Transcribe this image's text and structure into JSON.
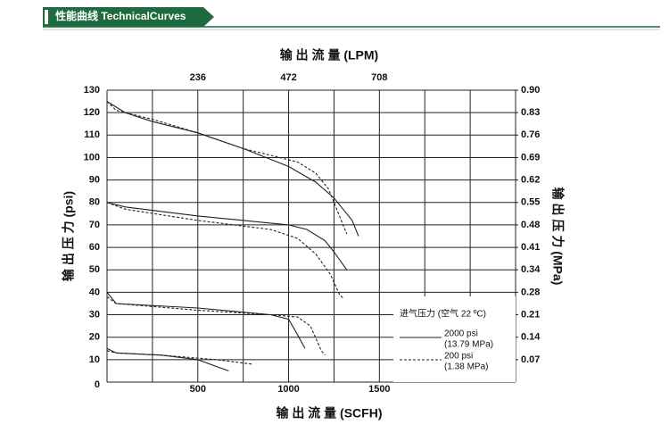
{
  "header": {
    "title": "性能曲线 TechnicalCurves"
  },
  "chart_data": {
    "type": "line",
    "x_title": "输 出 流 量 (SCFH)",
    "x2_title": "输 出 流 量 (LPM)",
    "y_title": "输 出 压 力 (psi)",
    "y2_title": "输 出 压 力 (MPa)",
    "xlim": [
      0,
      2250
    ],
    "xticks": [
      500,
      1000,
      1500
    ],
    "xgrid": [
      250,
      500,
      750,
      1000,
      1250,
      1500,
      1750,
      2000,
      2250
    ],
    "x2lim": [
      0,
      1062
    ],
    "x2ticks": [
      236,
      472,
      708
    ],
    "ylim": [
      0,
      130
    ],
    "yticks": [
      0,
      10,
      20,
      30,
      40,
      50,
      60,
      70,
      80,
      90,
      100,
      110,
      120,
      130
    ],
    "y2lim": [
      0,
      0.8963
    ],
    "y2ticks": [
      {
        "value": 0.0689,
        "label": "0.07"
      },
      {
        "value": 0.1379,
        "label": "0.14"
      },
      {
        "value": 0.2068,
        "label": "0.21"
      },
      {
        "value": 0.2758,
        "label": "0.28"
      },
      {
        "value": 0.3447,
        "label": "0.34"
      },
      {
        "value": 0.4137,
        "label": "0.41"
      },
      {
        "value": 0.4826,
        "label": "0.48"
      },
      {
        "value": 0.5516,
        "label": "0.55"
      },
      {
        "value": 0.6205,
        "label": "0.62"
      },
      {
        "value": 0.6895,
        "label": "0.69"
      },
      {
        "value": 0.7584,
        "label": "0.76"
      },
      {
        "value": 0.8274,
        "label": "0.83"
      },
      {
        "value": 0.8963,
        "label": "0.90"
      }
    ],
    "grid": true,
    "legend_title": "进气压力 (空气 22 ºC)",
    "series": [
      {
        "name": "2000 psi",
        "detail": "(13.79 MPa)",
        "color": "#222",
        "dashed": false,
        "curves": [
          {
            "x": [
              0,
              100,
              250,
              500,
              750,
              1000,
              1150,
              1250,
              1300,
              1350,
              1385
            ],
            "y": [
              125,
              120,
              116,
              111,
              104,
              96,
              89,
              82,
              77,
              72,
              65
            ]
          },
          {
            "x": [
              0,
              100,
              500,
              1000,
              1100,
              1200,
              1250,
              1320
            ],
            "y": [
              80,
              78,
              74,
              70,
              68,
              63,
              58,
              50
            ]
          },
          {
            "x": [
              0,
              50,
              500,
              900,
              1000,
              1050,
              1090
            ],
            "y": [
              40,
              35,
              33,
              30,
              28,
              21,
              15
            ]
          },
          {
            "x": [
              0,
              50,
              300,
              500,
              600,
              670
            ],
            "y": [
              15,
              13,
              12,
              10,
              7,
              5
            ]
          }
        ]
      },
      {
        "name": "200 psi",
        "detail": "(1.38 MPa)",
        "color": "#222",
        "dashed": true,
        "curves": [
          {
            "x": [
              0,
              50,
              250,
              500,
              750,
              900,
              1050,
              1150,
              1220,
              1260,
              1300,
              1320
            ],
            "y": [
              125,
              121,
              117,
              111,
              104,
              101,
              98,
              93,
              86,
              78,
              70,
              66
            ]
          },
          {
            "x": [
              0,
              100,
              500,
              900,
              1050,
              1150,
              1230,
              1280,
              1305
            ],
            "y": [
              80,
              77,
              72,
              68,
              64,
              57,
              48,
              39,
              37
            ]
          },
          {
            "x": [
              0,
              50,
              500,
              900,
              1050,
              1120,
              1180,
              1200
            ],
            "y": [
              38,
              35,
              32,
              30,
              29,
              25,
              14,
              12
            ]
          },
          {
            "x": [
              0,
              50,
              300,
              600,
              800
            ],
            "y": [
              14,
              13,
              12,
              10,
              8
            ]
          }
        ]
      }
    ]
  }
}
